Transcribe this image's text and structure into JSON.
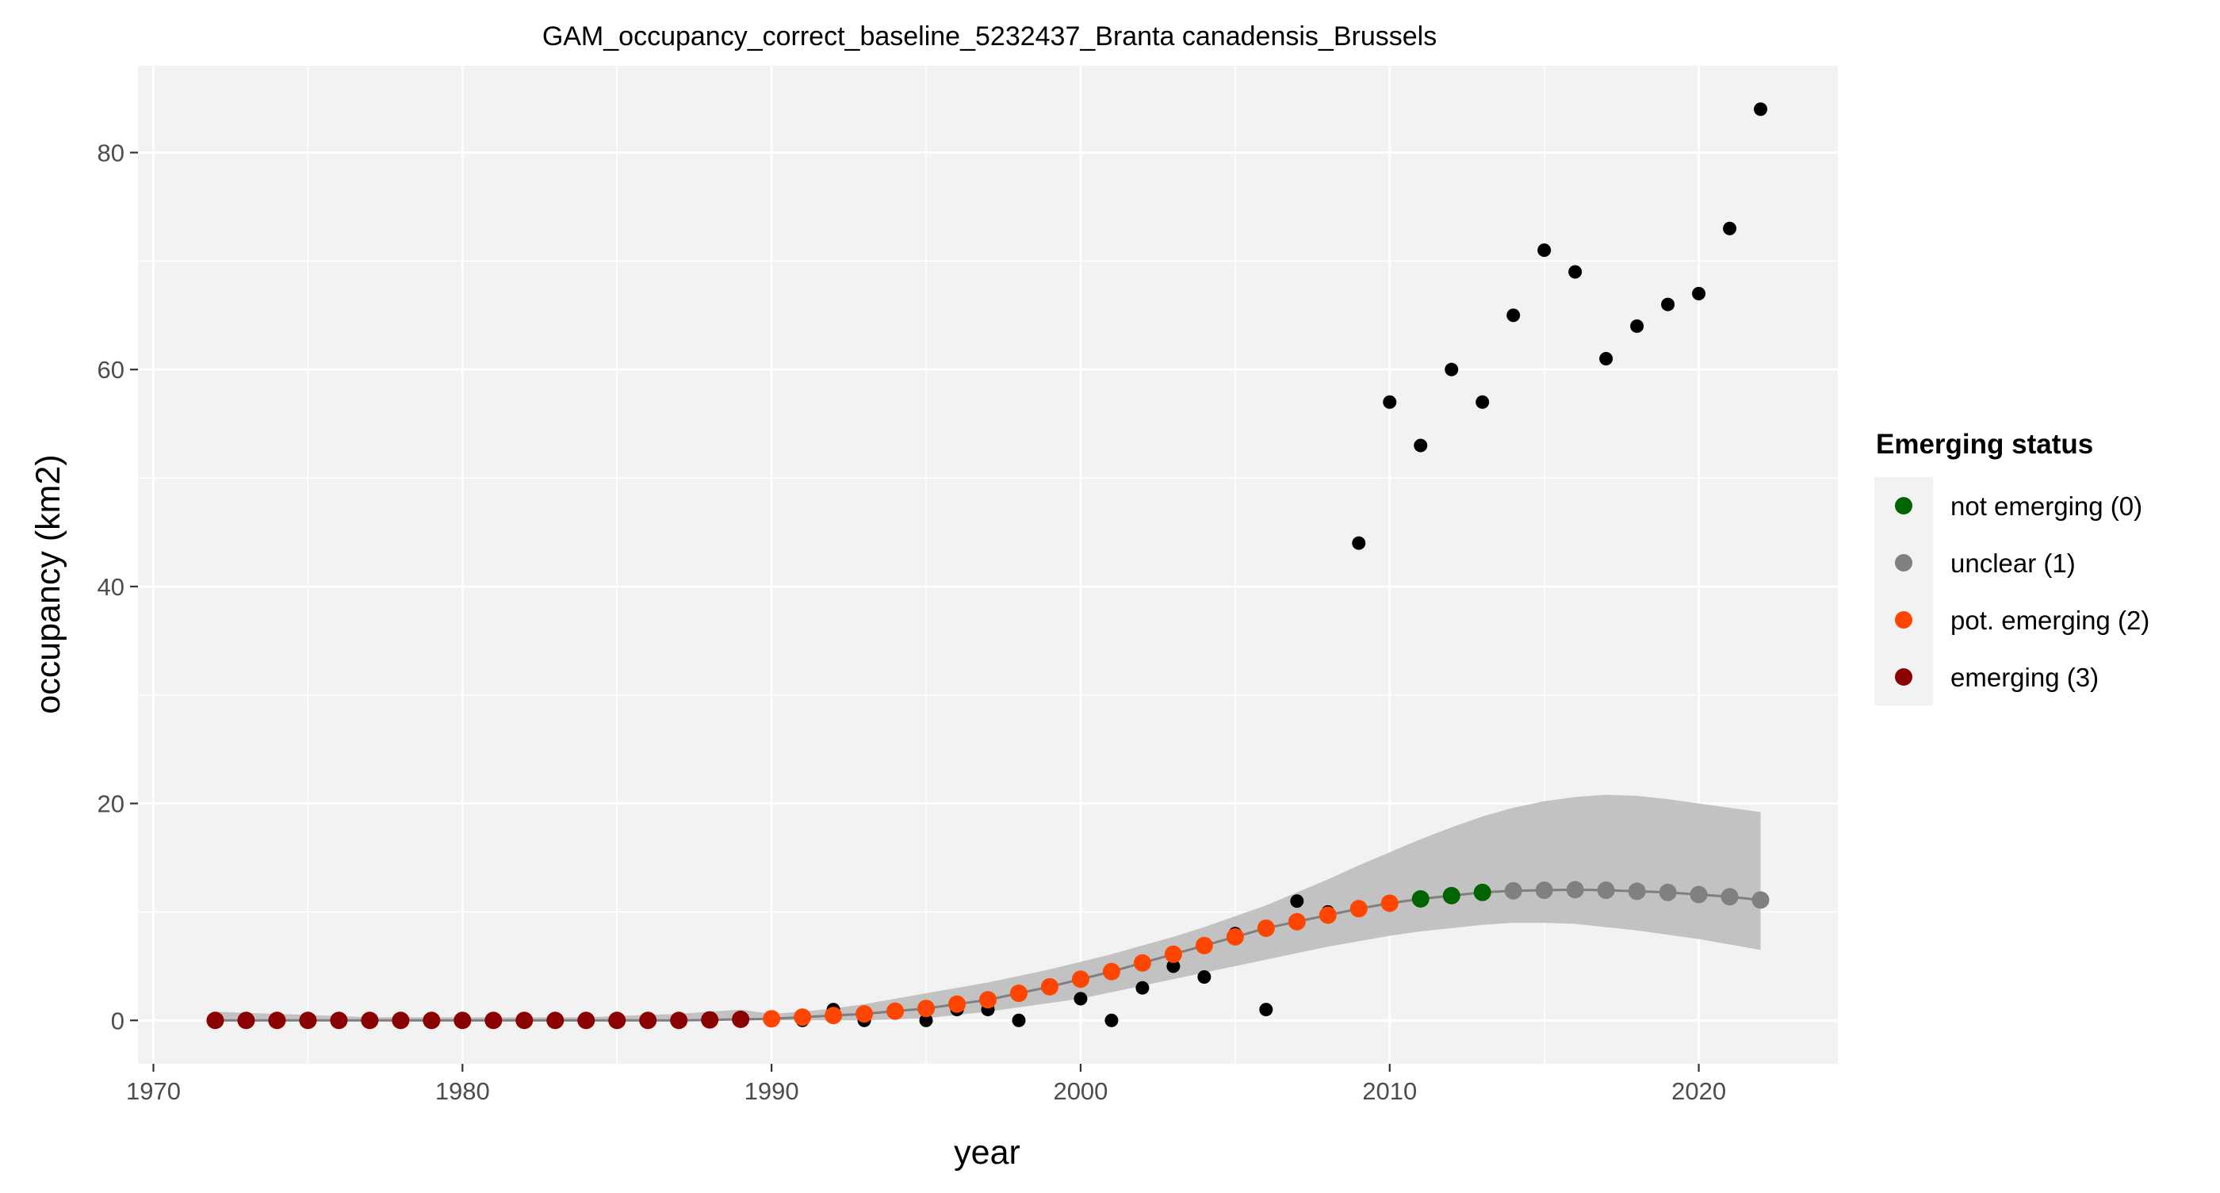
{
  "chart_data": {
    "type": "scatter",
    "title": "GAM_occupancy_correct_baseline_5232437_Branta canadensis_Brussels",
    "xlabel": "year",
    "ylabel": "occupancy (km2)",
    "xlim": [
      1969.5,
      2024.5
    ],
    "ylim": [
      -4,
      88
    ],
    "x_ticks": [
      1970,
      1980,
      1990,
      2000,
      2010,
      2020
    ],
    "y_ticks": [
      0,
      20,
      40,
      60,
      80
    ],
    "grid": true,
    "legend": {
      "title": "Emerging status",
      "placement": "right",
      "entries": [
        {
          "label": "not emerging (0)",
          "color": "#006400"
        },
        {
          "label": "unclear (1)",
          "color": "#808080"
        },
        {
          "label": "pot. emerging (2)",
          "color": "#FF4500"
        },
        {
          "label": "emerging (3)",
          "color": "#8B0000"
        }
      ]
    },
    "colors": {
      "panel": "#f2f2f2",
      "grid": "#ffffff",
      "observed": "#000000",
      "fit_line": "#7f7f7f",
      "ribbon": "#bdbdbd"
    },
    "observed": {
      "x": [
        1972,
        1973,
        1974,
        1975,
        1976,
        1977,
        1978,
        1979,
        1980,
        1981,
        1982,
        1983,
        1984,
        1985,
        1986,
        1987,
        1988,
        1989,
        1990,
        1991,
        1992,
        1993,
        1994,
        1995,
        1996,
        1997,
        1998,
        1999,
        2000,
        2001,
        2002,
        2003,
        2004,
        2005,
        2006,
        2007,
        2008,
        2009,
        2010,
        2011,
        2012,
        2013,
        2014,
        2015,
        2016,
        2017,
        2018,
        2019,
        2020,
        2021,
        2022
      ],
      "y": [
        0,
        0,
        0,
        0,
        0,
        0,
        0,
        0,
        0,
        0,
        0,
        0,
        0,
        0,
        0,
        0,
        0,
        0,
        0,
        0,
        1,
        0,
        1,
        0,
        1,
        1,
        0,
        3,
        2,
        0,
        3,
        5,
        4,
        8,
        1,
        11,
        10,
        44,
        57,
        53,
        60,
        57,
        65,
        71,
        69,
        61,
        64,
        66,
        67,
        73,
        84
      ]
    },
    "fit": {
      "x": [
        1972,
        1973,
        1974,
        1975,
        1976,
        1977,
        1978,
        1979,
        1980,
        1981,
        1982,
        1983,
        1984,
        1985,
        1986,
        1987,
        1988,
        1989,
        1990,
        1991,
        1992,
        1993,
        1994,
        1995,
        1996,
        1997,
        1998,
        1999,
        2000,
        2001,
        2002,
        2003,
        2004,
        2005,
        2006,
        2007,
        2008,
        2009,
        2010,
        2011,
        2012,
        2013,
        2014,
        2015,
        2016,
        2017,
        2018,
        2019,
        2020,
        2021,
        2022
      ],
      "y": [
        0,
        0,
        0,
        0,
        0,
        0,
        0,
        0,
        0,
        0,
        0,
        0,
        0,
        0,
        0,
        0,
        0.05,
        0.1,
        0.15,
        0.3,
        0.45,
        0.6,
        0.85,
        1.1,
        1.5,
        1.9,
        2.5,
        3.1,
        3.8,
        4.5,
        5.3,
        6.1,
        6.9,
        7.7,
        8.5,
        9.1,
        9.7,
        10.3,
        10.8,
        11.2,
        11.5,
        11.8,
        11.95,
        12.0,
        12.05,
        12.0,
        11.9,
        11.8,
        11.6,
        11.4,
        11.1
      ],
      "lower": [
        0,
        0,
        0,
        0,
        0,
        0,
        0,
        0,
        0,
        0,
        0,
        0,
        0,
        0,
        0,
        0,
        0,
        0,
        0,
        0,
        0,
        0,
        0.1,
        0.2,
        0.5,
        0.8,
        1.2,
        1.6,
        2.0,
        2.6,
        3.2,
        3.8,
        4.4,
        5.0,
        5.6,
        6.2,
        6.8,
        7.3,
        7.8,
        8.2,
        8.5,
        8.8,
        9.0,
        9.0,
        8.9,
        8.6,
        8.3,
        7.9,
        7.5,
        7.0,
        6.5
      ],
      "upper": [
        0.8,
        0.7,
        0.6,
        0.5,
        0.4,
        0.3,
        0.3,
        0.3,
        0.3,
        0.3,
        0.3,
        0.3,
        0.3,
        0.4,
        0.5,
        0.6,
        0.8,
        1.0,
        0.6,
        0.8,
        1.1,
        1.5,
        2.0,
        2.5,
        3.0,
        3.5,
        4.1,
        4.7,
        5.4,
        6.1,
        6.9,
        7.7,
        8.6,
        9.6,
        10.6,
        11.8,
        13.0,
        14.3,
        15.5,
        16.7,
        17.8,
        18.8,
        19.6,
        20.2,
        20.6,
        20.8,
        20.7,
        20.4,
        20.0,
        19.6,
        19.2
      ],
      "status": [
        "emerging (3)",
        "emerging (3)",
        "emerging (3)",
        "emerging (3)",
        "emerging (3)",
        "emerging (3)",
        "emerging (3)",
        "emerging (3)",
        "emerging (3)",
        "emerging (3)",
        "emerging (3)",
        "emerging (3)",
        "emerging (3)",
        "emerging (3)",
        "emerging (3)",
        "emerging (3)",
        "emerging (3)",
        "emerging (3)",
        "pot. emerging (2)",
        "pot. emerging (2)",
        "pot. emerging (2)",
        "pot. emerging (2)",
        "pot. emerging (2)",
        "pot. emerging (2)",
        "pot. emerging (2)",
        "pot. emerging (2)",
        "pot. emerging (2)",
        "pot. emerging (2)",
        "pot. emerging (2)",
        "pot. emerging (2)",
        "pot. emerging (2)",
        "pot. emerging (2)",
        "pot. emerging (2)",
        "pot. emerging (2)",
        "pot. emerging (2)",
        "pot. emerging (2)",
        "pot. emerging (2)",
        "pot. emerging (2)",
        "pot. emerging (2)",
        "not emerging (0)",
        "not emerging (0)",
        "not emerging (0)",
        "unclear (1)",
        "unclear (1)",
        "unclear (1)",
        "unclear (1)",
        "unclear (1)",
        "unclear (1)",
        "unclear (1)",
        "unclear (1)",
        "unclear (1)"
      ]
    }
  }
}
